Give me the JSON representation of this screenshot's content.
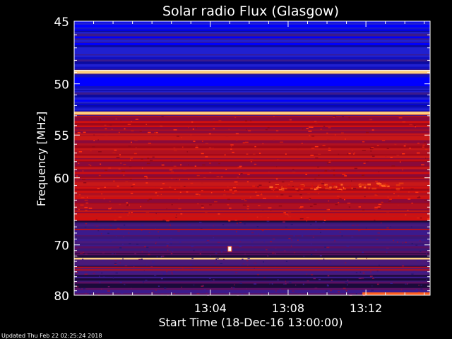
{
  "chart_data": {
    "type": "heatmap",
    "title": "Solar radio Flux (Glasgow)",
    "xlabel": "Start Time (18-Dec-16 13:00:00)",
    "ylabel": "Frequency [MHz]",
    "x_ticks": [
      "13:04",
      "13:08",
      "13:12"
    ],
    "y_ticks": [
      45,
      50,
      55,
      60,
      70,
      80
    ],
    "ylim": [
      45,
      80
    ],
    "yscale": "reciprocal (higher frequency at bottom, log-like spacing)",
    "colormap": [
      "#1a0a3a",
      "#3b1a8c",
      "#0000ff",
      "#8a0a3a",
      "#d01010",
      "#ff6020",
      "#ffd080",
      "#ffffff"
    ],
    "bands": [
      {
        "freq_from": 45,
        "freq_to": 48.7,
        "level": "low"
      },
      {
        "freq_from": 48.8,
        "freq_to": 49.1,
        "level": "saturated"
      },
      {
        "freq_from": 49.2,
        "freq_to": 52.5,
        "level": "low"
      },
      {
        "freq_from": 52.6,
        "freq_to": 52.9,
        "level": "bright"
      },
      {
        "freq_from": 53,
        "freq_to": 66,
        "level": "medium"
      },
      {
        "freq_from": 72.3,
        "freq_to": 72.6,
        "level": "bright"
      },
      {
        "freq_from": 66,
        "freq_to": 80,
        "level": "medium-low"
      }
    ],
    "events": [
      {
        "time": "13:05",
        "freq": 70.7,
        "level": "saturated"
      },
      {
        "time_from": "13:07",
        "time_to": "13:14",
        "freq": 61.2,
        "level": "medium-high"
      }
    ],
    "footer": "Updated Thu Feb 22 02:25:24 2018"
  }
}
